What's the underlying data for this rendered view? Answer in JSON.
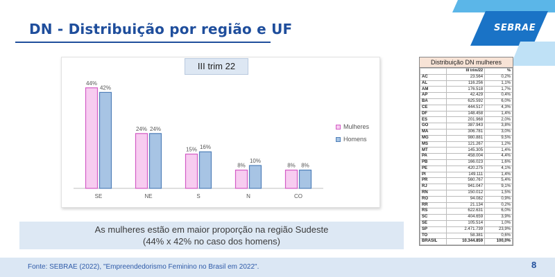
{
  "header": {
    "title": "DN - Distribuição por região e UF",
    "logo_text": "SEBRAE"
  },
  "chart_data": {
    "type": "bar",
    "badge": "III trim 22",
    "categories": [
      "SE",
      "NE",
      "S",
      "N",
      "CO"
    ],
    "series": [
      {
        "name": "Mulheres",
        "values": [
          44,
          24,
          15,
          8,
          8
        ],
        "labels": [
          "44%",
          "24%",
          "15%",
          "8%",
          "8%"
        ],
        "color": "#f7ccf0",
        "border": "#d35bc5"
      },
      {
        "name": "Homens",
        "values": [
          42,
          24,
          16,
          10,
          8
        ],
        "labels": [
          "42%",
          "24%",
          "16%",
          "10%",
          "8%"
        ],
        "color": "#a7c4e4",
        "border": "#4f7fb8"
      }
    ],
    "ylim": [
      0,
      50
    ],
    "grid": false,
    "legend_position": "right"
  },
  "table": {
    "title": "Distribuição DN mulheres",
    "columns": [
      "",
      "III trim/22",
      "%"
    ],
    "rows": [
      [
        "AC",
        "23.564",
        "0,2%"
      ],
      [
        "AL",
        "116.256",
        "1,1%"
      ],
      [
        "AM",
        "176.518",
        "1,7%"
      ],
      [
        "AP",
        "42.429",
        "0,4%"
      ],
      [
        "BA",
        "625.592",
        "6,0%"
      ],
      [
        "CE",
        "444.517",
        "4,3%"
      ],
      [
        "DF",
        "148.458",
        "1,4%"
      ],
      [
        "ES",
        "201.968",
        "2,0%"
      ],
      [
        "GO",
        "387.943",
        "3,8%"
      ],
      [
        "MA",
        "306.781",
        "3,0%"
      ],
      [
        "MG",
        "980.881",
        "9,5%"
      ],
      [
        "MS",
        "121.267",
        "1,2%"
      ],
      [
        "MT",
        "145.305",
        "1,4%"
      ],
      [
        "PA",
        "458.004",
        "4,4%"
      ],
      [
        "PB",
        "166.023",
        "1,6%"
      ],
      [
        "PE",
        "420.275",
        "4,1%"
      ],
      [
        "PI",
        "149.111",
        "1,4%"
      ],
      [
        "PR",
        "560.767",
        "5,4%"
      ],
      [
        "RJ",
        "941.047",
        "9,1%"
      ],
      [
        "RN",
        "150.012",
        "1,5%"
      ],
      [
        "RO",
        "94.082",
        "0,9%"
      ],
      [
        "RR",
        "21.134",
        "0,2%"
      ],
      [
        "RS",
        "622.631",
        "6,0%"
      ],
      [
        "SC",
        "404.659",
        "3,9%"
      ],
      [
        "SE",
        "105.514",
        "1,0%"
      ],
      [
        "SP",
        "2.471.739",
        "23,9%"
      ],
      [
        "TO",
        "58.381",
        "0,6%"
      ]
    ],
    "total": [
      "BRASIL",
      "10.344.859",
      "100,0%"
    ]
  },
  "note": {
    "line1": "As mulheres estão em maior proporção na região Sudeste",
    "line2": "(44% x 42% no caso dos homens)"
  },
  "footer": {
    "source": "Fonte: SEBRAE (2022), \"Empreendedorismo Feminino no Brasil em 2022\".",
    "page": "8"
  }
}
